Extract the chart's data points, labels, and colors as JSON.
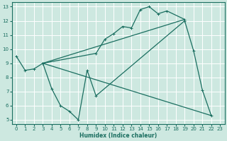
{
  "xlabel": "Humidex (Indice chaleur)",
  "bg_color": "#cde8e0",
  "grid_color": "#ffffff",
  "line_color": "#1a6e60",
  "xlim": [
    -0.5,
    23.5
  ],
  "ylim": [
    4.7,
    13.3
  ],
  "xticks": [
    0,
    1,
    2,
    3,
    4,
    5,
    6,
    7,
    8,
    9,
    10,
    11,
    12,
    13,
    14,
    15,
    16,
    17,
    18,
    19,
    20,
    21,
    22,
    23
  ],
  "yticks": [
    5,
    6,
    7,
    8,
    9,
    10,
    11,
    12,
    13
  ],
  "series": [
    {
      "x": [
        0,
        1,
        2,
        3,
        4,
        5,
        6,
        7,
        8,
        9,
        19,
        20,
        21,
        22
      ],
      "y": [
        9.5,
        8.5,
        8.6,
        9.0,
        7.2,
        6.0,
        5.6,
        5.0,
        8.5,
        6.7,
        12.0,
        9.9,
        7.1,
        5.3
      ]
    },
    {
      "x": [
        3,
        9,
        10,
        11,
        12,
        13,
        14,
        15,
        16,
        17,
        19
      ],
      "y": [
        9.0,
        9.7,
        10.7,
        11.1,
        11.6,
        11.5,
        12.8,
        13.0,
        12.5,
        12.7,
        12.1
      ]
    },
    {
      "x": [
        3,
        22
      ],
      "y": [
        9.0,
        5.3
      ]
    },
    {
      "x": [
        3,
        19
      ],
      "y": [
        9.0,
        12.1
      ]
    }
  ]
}
